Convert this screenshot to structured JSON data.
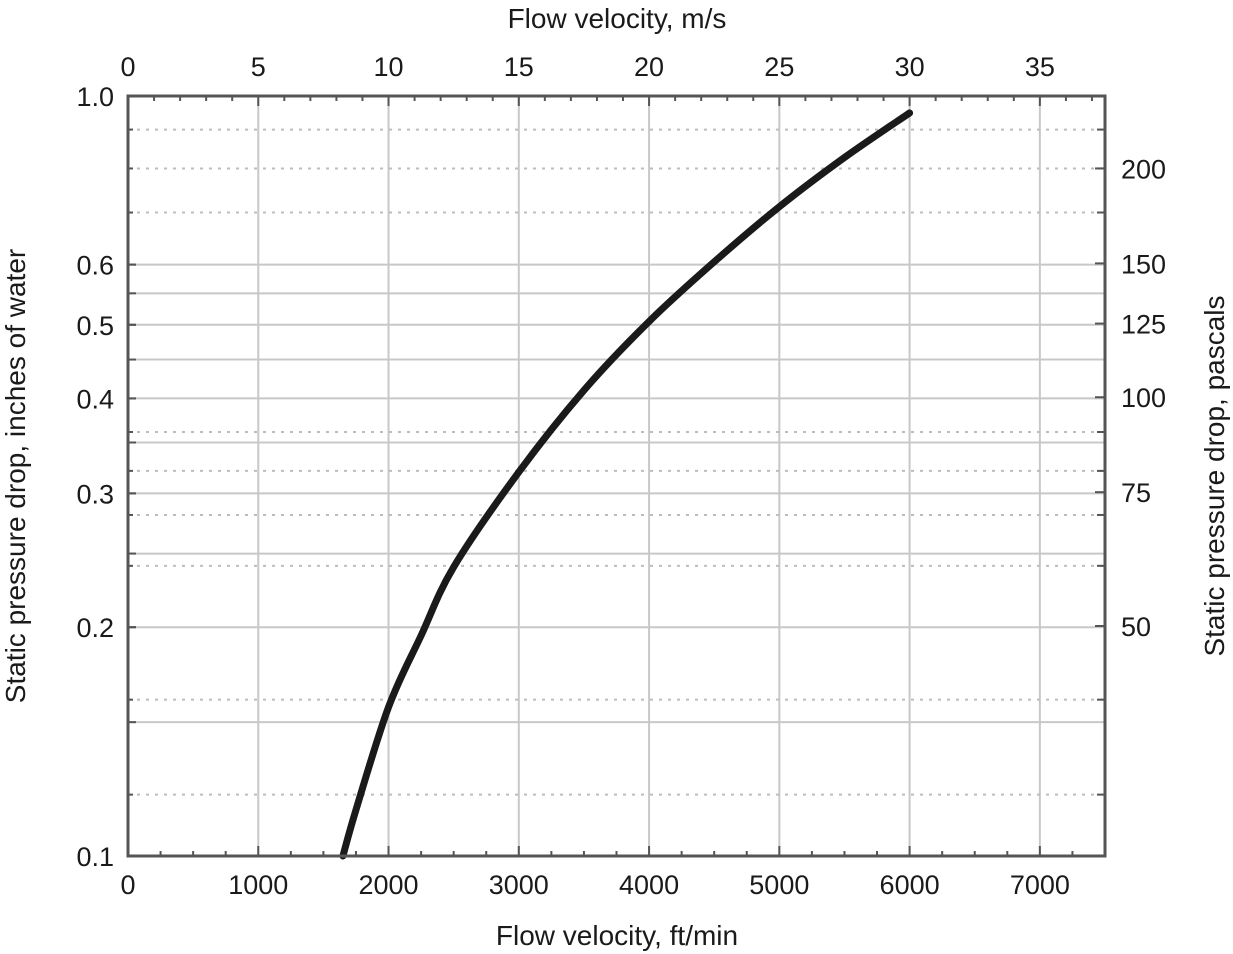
{
  "chart_data": {
    "type": "line",
    "title": "",
    "xlabel": "Flow velocity, ft/min",
    "x2label": "Flow velocity, m/s",
    "ylabel": "Static pressure drop, inches of water",
    "y2label": "Static pressure drop, pascals",
    "xlim": [
      0,
      7500
    ],
    "x2lim": [
      0,
      37.5
    ],
    "ylim": [
      0.1,
      1.0
    ],
    "yscale": "log",
    "grid": true,
    "legend": null,
    "x_ticks": [
      0,
      1000,
      2000,
      3000,
      4000,
      5000,
      6000,
      7000
    ],
    "x_tick_labels": [
      "0",
      "1000",
      "2000",
      "3000",
      "4000",
      "5000",
      "6000",
      "7000"
    ],
    "x_minor_step": 250,
    "x2_ticks": [
      0,
      5,
      10,
      15,
      20,
      25,
      30,
      35
    ],
    "x2_tick_labels": [
      "0",
      "5",
      "10",
      "15",
      "20",
      "25",
      "30",
      "35"
    ],
    "x2_minor_step": 1,
    "y_ticks": [
      1.0,
      0.6,
      0.5,
      0.4,
      0.3,
      0.2,
      0.1
    ],
    "y_tick_labels": [
      "1.0",
      "0.6",
      "0.5",
      "0.4",
      "0.3",
      "0.2",
      "0.1"
    ],
    "y_solid_gridlines": [
      0.6,
      0.55,
      0.5,
      0.45,
      0.4,
      0.35,
      0.3,
      0.25,
      0.2,
      0.15
    ],
    "y2_ticks_pa": [
      200,
      150,
      125,
      100,
      75,
      50
    ],
    "y2_tick_labels": [
      "200",
      "150",
      "125",
      "100",
      "75",
      "50"
    ],
    "y2_dotted_gridlines_pa": [
      225,
      200,
      175,
      90,
      80,
      70,
      60,
      40,
      30
    ],
    "pa_per_inch_water": 249.089,
    "series": [
      {
        "name": "Static pressure drop",
        "color": "#1a1a1a",
        "x": [
          1650,
          1750,
          2000,
          2250,
          2500,
          3000,
          3500,
          4000,
          4500,
          5000,
          5500,
          6000
        ],
        "y": [
          0.1,
          0.115,
          0.157,
          0.195,
          0.24,
          0.32,
          0.41,
          0.505,
          0.605,
          0.715,
          0.83,
          0.95
        ]
      }
    ]
  },
  "colors": {
    "axis": "#555555",
    "grid": "#c8c8c8",
    "dotted_grid": "#bdbdbd",
    "curve": "#1a1a1a",
    "text": "#1a1a1a"
  }
}
